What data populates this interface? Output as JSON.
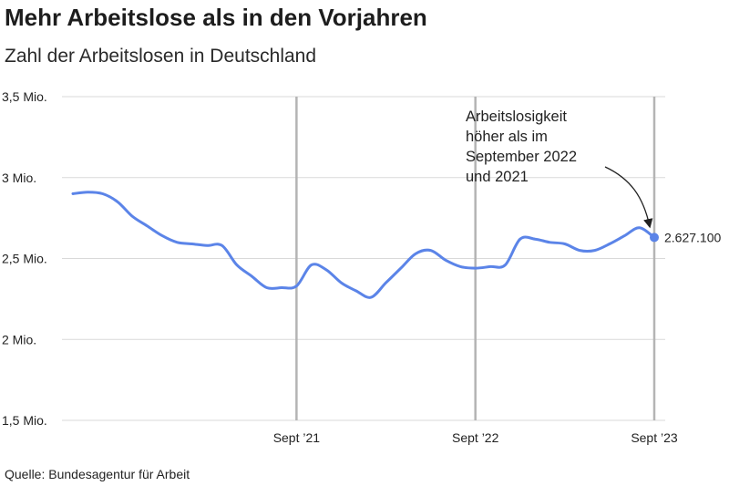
{
  "header": {
    "title": "Mehr Arbeitslose als in den Vorjahren",
    "subtitle": "Zahl der Arbeitslosen in Deutschland"
  },
  "footer": {
    "source": "Quelle: Bundesagentur für Arbeit"
  },
  "colors": {
    "line": "#5b84e8",
    "marker": "#5b84e8",
    "grid": "#d9d9d9",
    "reference_line": "#b4b4b4"
  },
  "chart_data": {
    "type": "line",
    "title": "Mehr Arbeitslose als in den Vorjahren",
    "subtitle": "Zahl der Arbeitslosen in Deutschland",
    "xlabel": "",
    "ylabel": "",
    "ylim": [
      1.5,
      3.5
    ],
    "grid": true,
    "y_ticks": [
      {
        "value": 3.5,
        "label": "3,5 Mio."
      },
      {
        "value": 3.0,
        "label": "3 Mio."
      },
      {
        "value": 2.5,
        "label": "2,5 Mio."
      },
      {
        "value": 2.0,
        "label": "2 Mio."
      },
      {
        "value": 1.5,
        "label": "1,5 Mio."
      }
    ],
    "x_ticks": [
      {
        "month": "2021-09",
        "label": "Sept ’21"
      },
      {
        "month": "2022-09",
        "label": "Sept ’22"
      },
      {
        "month": "2023-09",
        "label": "Sept ’23"
      }
    ],
    "reference_months": [
      "2021-09",
      "2022-09",
      "2023-09"
    ],
    "series": [
      {
        "x": [
          "2020-06",
          "2020-07",
          "2020-08",
          "2020-09",
          "2020-10",
          "2020-11",
          "2020-12",
          "2021-01",
          "2021-02",
          "2021-03",
          "2021-04",
          "2021-05",
          "2021-06",
          "2021-07",
          "2021-08",
          "2021-09",
          "2021-10",
          "2021-11",
          "2021-12",
          "2022-01",
          "2022-02",
          "2022-03",
          "2022-04",
          "2022-05",
          "2022-06",
          "2022-07",
          "2022-08",
          "2022-09",
          "2022-10",
          "2022-11",
          "2022-12",
          "2023-01",
          "2023-02",
          "2023-03",
          "2023-04",
          "2023-05",
          "2023-06",
          "2023-07",
          "2023-08",
          "2023-09"
        ],
        "values": [
          2.9,
          2.91,
          2.9,
          2.85,
          2.76,
          2.7,
          2.64,
          2.6,
          2.59,
          2.58,
          2.58,
          2.46,
          2.39,
          2.32,
          2.32,
          2.33,
          2.46,
          2.43,
          2.35,
          2.3,
          2.26,
          2.35,
          2.44,
          2.53,
          2.55,
          2.49,
          2.45,
          2.44,
          2.45,
          2.46,
          2.62,
          2.62,
          2.6,
          2.59,
          2.55,
          2.55,
          2.59,
          2.64,
          2.69,
          2.63
        ]
      }
    ],
    "annotation": {
      "text_lines": [
        "Arbeitslosigkeit",
        "höher als im",
        "September 2022",
        "und 2021"
      ],
      "point_month": "2023-09",
      "point_label": "2.627.100"
    }
  }
}
